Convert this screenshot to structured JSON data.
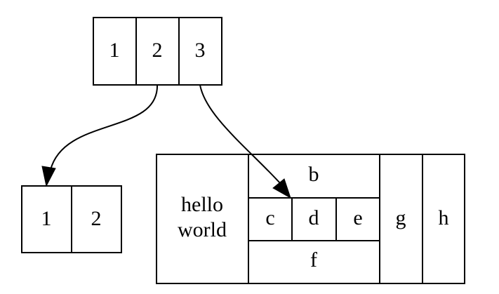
{
  "structs": {
    "struct1": {
      "fields": [
        "1",
        "2",
        "3"
      ]
    },
    "struct2": {
      "fields": [
        "1",
        "2"
      ]
    },
    "struct3": {
      "left_lines": [
        "hello",
        "world"
      ],
      "top": "b",
      "middle": [
        "c",
        "d",
        "e"
      ],
      "bottom": "f",
      "right": [
        "g",
        "h"
      ]
    }
  },
  "edges": [
    {
      "from": "struct1.2",
      "to": "struct2.1"
    },
    {
      "from": "struct1.3",
      "to": "struct3.d"
    }
  ]
}
